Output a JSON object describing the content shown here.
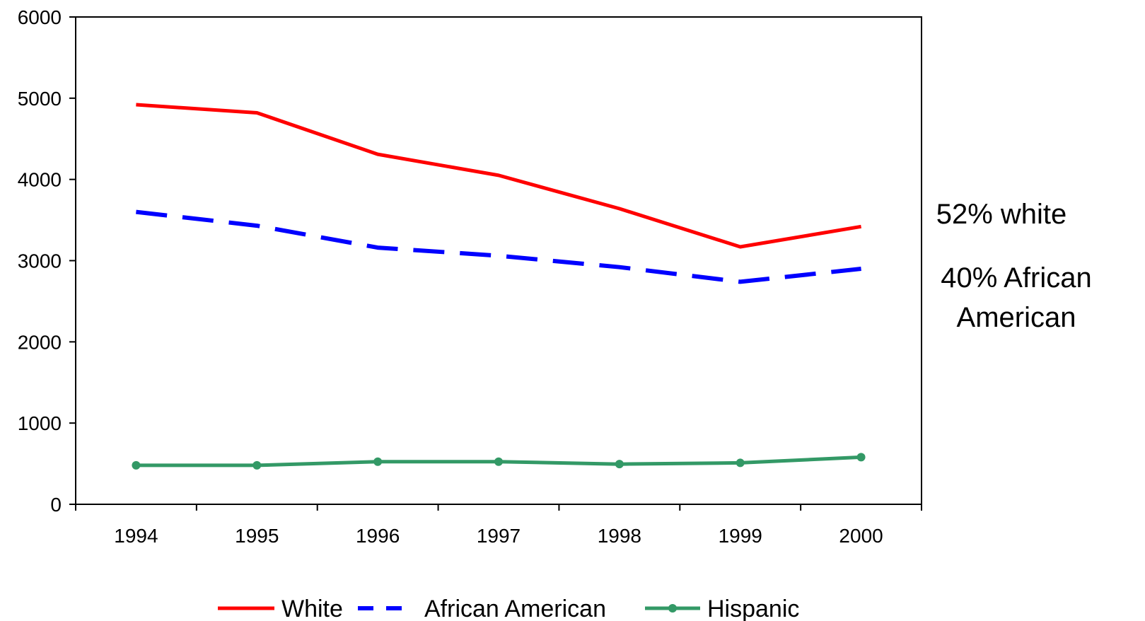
{
  "chart_data": {
    "type": "line",
    "title": "",
    "xlabel": "",
    "ylabel": "",
    "categories": [
      "1994",
      "1995",
      "1996",
      "1997",
      "1998",
      "1999",
      "2000"
    ],
    "ylim": [
      0,
      6000
    ],
    "yticks": [
      0,
      1000,
      2000,
      3000,
      4000,
      5000,
      6000
    ],
    "grid": false,
    "legend_position": "bottom",
    "series": [
      {
        "name": "White",
        "color": "#ff0000",
        "style": "solid",
        "markers": false,
        "values": [
          4920,
          4820,
          4310,
          4050,
          3640,
          3170,
          3420
        ]
      },
      {
        "name": "African American",
        "color": "#0000ff",
        "style": "dashed",
        "markers": false,
        "values": [
          3600,
          3430,
          3160,
          3060,
          2920,
          2740,
          2900
        ]
      },
      {
        "name": "Hispanic",
        "color": "#339966",
        "style": "solid",
        "markers": true,
        "values": [
          480,
          480,
          525,
          525,
          495,
          510,
          580
        ]
      }
    ],
    "annotations": [
      {
        "lines": [
          "52% white"
        ]
      },
      {
        "lines": [
          "40% African",
          "American"
        ]
      }
    ]
  }
}
